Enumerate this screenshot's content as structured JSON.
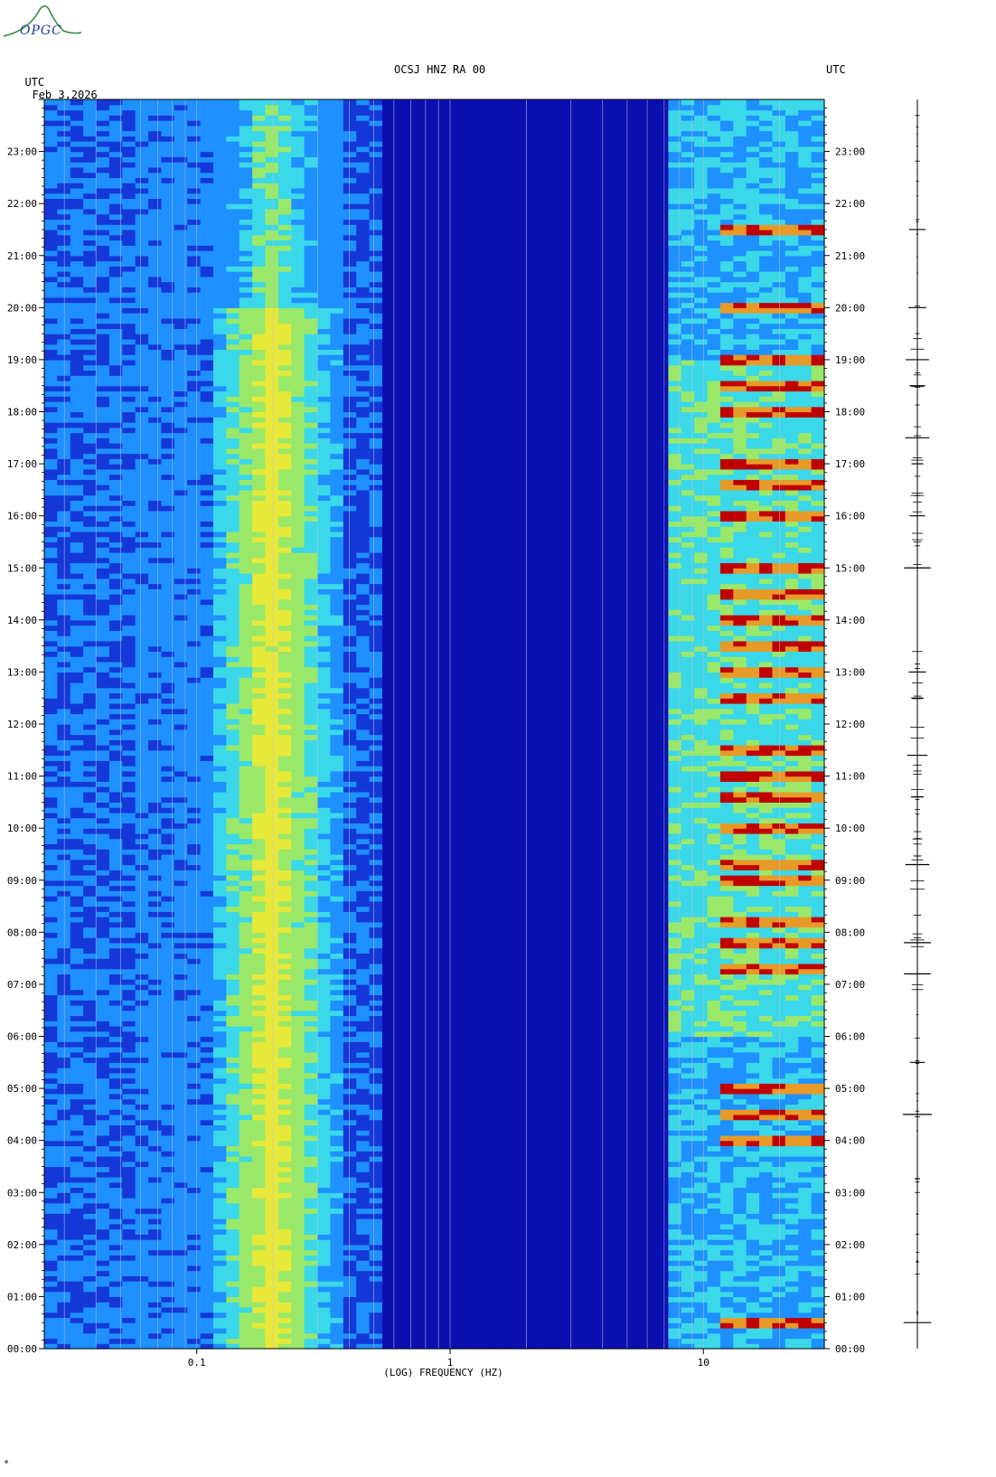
{
  "header": {
    "left_utc": "UTC",
    "date": "Feb 3,2026",
    "station": "OCSJ HNZ RA 00",
    "right_utc": "UTC"
  },
  "logo": {
    "text": "OPGC",
    "icon": "volcano-logo-icon",
    "color": "#1a3a9a"
  },
  "footer_mark": "*",
  "chart_data": {
    "type": "heatmap",
    "title": "OCSJ HNZ RA 00",
    "xlabel": "(LOG) FREQUENCY (HZ)",
    "ylabel": "",
    "x_scale": "log",
    "xlim": [
      0.025,
      30
    ],
    "x_ticks": [
      {
        "value": 0.1,
        "label": "0.1"
      },
      {
        "value": 1,
        "label": "1"
      },
      {
        "value": 10,
        "label": "10"
      }
    ],
    "y_ticks": [
      "00:00",
      "01:00",
      "02:00",
      "03:00",
      "04:00",
      "05:00",
      "06:00",
      "07:00",
      "08:00",
      "09:00",
      "10:00",
      "11:00",
      "12:00",
      "13:00",
      "14:00",
      "15:00",
      "16:00",
      "17:00",
      "18:00",
      "19:00",
      "20:00",
      "21:00",
      "22:00",
      "23:00"
    ],
    "ylim_hours": [
      0,
      24
    ],
    "colors": {
      "background_low": "#0a10b0",
      "mid": "#1e90ff",
      "cyan": "#3ad8e8",
      "yellow": "#e8e838",
      "red": "#c00000"
    },
    "microseism_band_hz": [
      0.12,
      0.4
    ],
    "microseism_peak_hz": 0.2,
    "high_freq_band_hz": [
      7,
      30
    ],
    "strong_event_hours": [
      0.5,
      4.0,
      4.5,
      5.0,
      7.3,
      7.8,
      8.2,
      9.0,
      9.3,
      10.0,
      10.6,
      11.0,
      11.5,
      12.5,
      13.0,
      13.5,
      14.0,
      14.5,
      15.0,
      16.0,
      16.6,
      17.0,
      18.0,
      18.5,
      19.0,
      20.0,
      21.5
    ],
    "seismogram_event_hours": [
      0.5,
      4.5,
      5.5,
      7.2,
      7.8,
      9.3,
      10.6,
      11.4,
      12.5,
      13.0,
      15.0,
      16.0,
      17.0,
      17.5,
      18.5,
      19.0,
      20.0,
      21.5
    ]
  }
}
